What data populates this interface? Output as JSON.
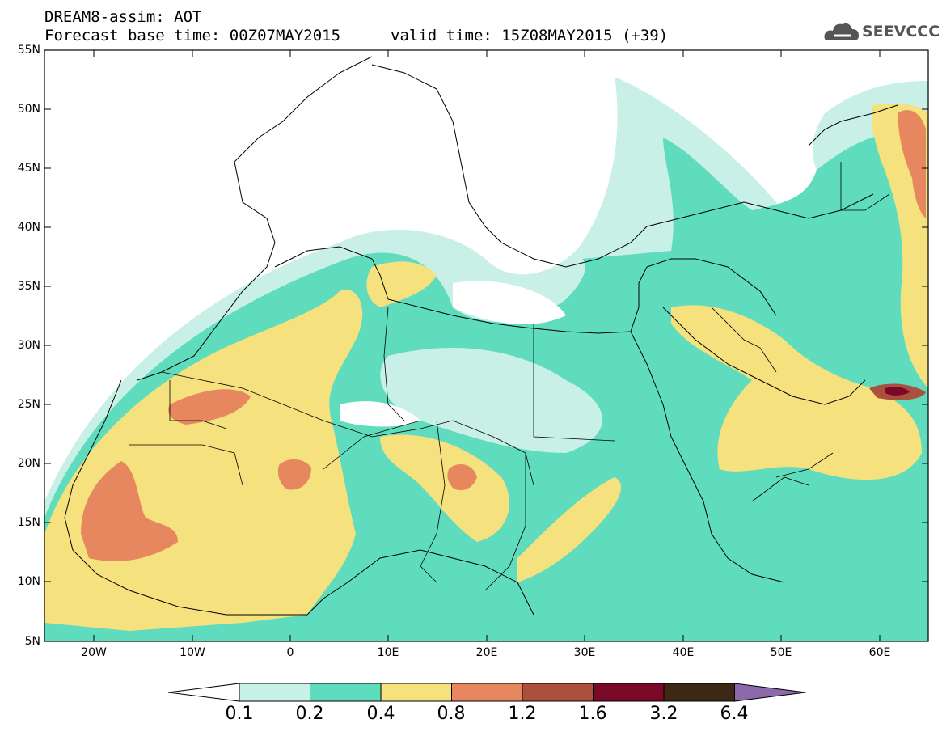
{
  "header": {
    "title": "DREAM8-assim: AOT",
    "base_time": "Forecast base time: 00Z07MAY2015",
    "valid_time": "valid time: 15Z08MAY2015 (+39)"
  },
  "logo": {
    "text": "SEEVCCC",
    "icon": "cloud-icon"
  },
  "axes": {
    "lat_labels": [
      "55N",
      "50N",
      "45N",
      "40N",
      "35N",
      "30N",
      "25N",
      "20N",
      "15N",
      "10N",
      "5N"
    ],
    "lon_labels": [
      "20W",
      "10W",
      "0",
      "10E",
      "20E",
      "30E",
      "40E",
      "50E",
      "60E"
    ]
  },
  "colorbar": {
    "labels": [
      "0.1",
      "0.2",
      "0.4",
      "0.8",
      "1.2",
      "1.6",
      "3.2",
      "6.4"
    ],
    "colors": [
      "#ffffff",
      "#c8f0e6",
      "#5fdcbe",
      "#f5e17d",
      "#e6875f",
      "#aa503c",
      "#780a28",
      "#3c2814",
      "#8c69aa"
    ]
  }
}
